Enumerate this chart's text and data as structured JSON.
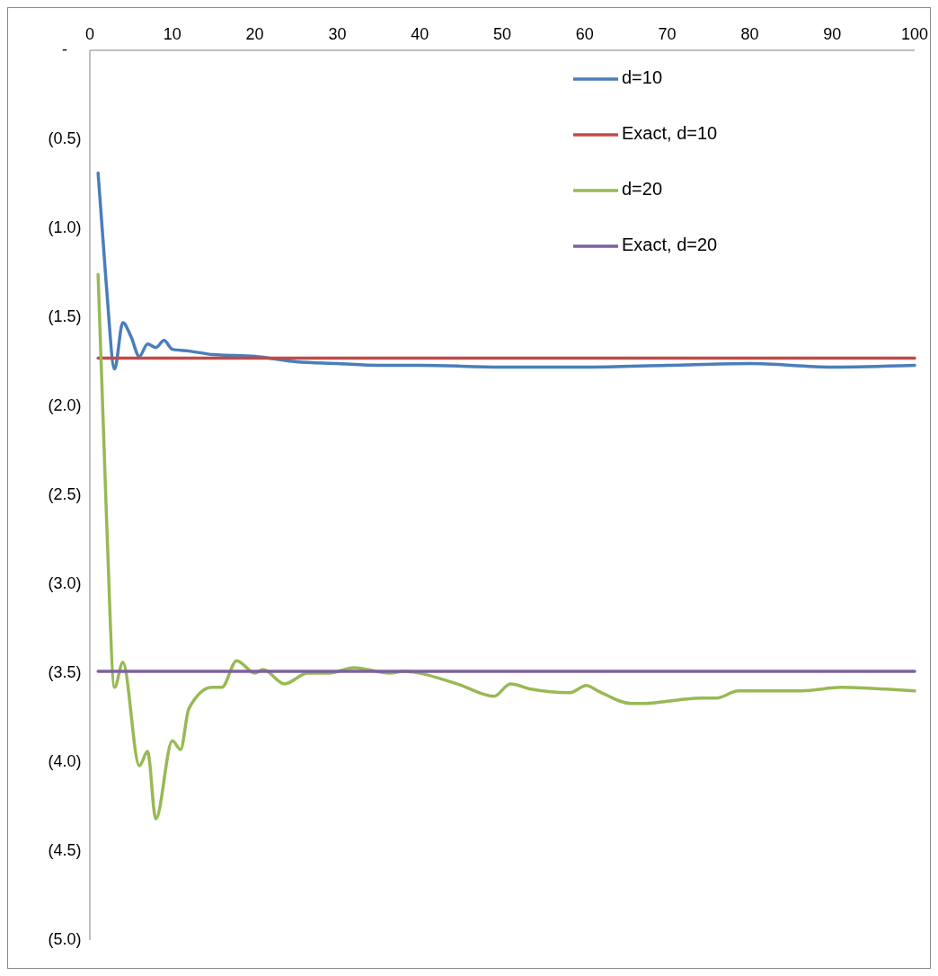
{
  "chart_data": {
    "type": "line",
    "legend": "top right",
    "marker": "none",
    "line_style": "solid",
    "grid": false,
    "xlim": [
      0,
      100
    ],
    "xticks": [
      0,
      10,
      20,
      30,
      40,
      50,
      60,
      70,
      80,
      90,
      100
    ],
    "ylim": [
      -5,
      0
    ],
    "yticks": [
      {
        "value": 0,
        "label": "-"
      },
      {
        "value": -0.5,
        "label": "(0.5)"
      },
      {
        "value": -1,
        "label": "(1.0)"
      },
      {
        "value": -1.5,
        "label": "(1.5)"
      },
      {
        "value": -2,
        "label": "(2.0)"
      },
      {
        "value": -2.5,
        "label": "(2.5)"
      },
      {
        "value": -3,
        "label": "(3.0)"
      },
      {
        "value": -3.5,
        "label": "(3.5)"
      },
      {
        "value": -4,
        "label": "(4.0)"
      },
      {
        "value": -4.5,
        "label": "(4.5)"
      },
      {
        "value": -5,
        "label": "(5.0)"
      }
    ],
    "series": [
      {
        "name": "d=10",
        "color": "#4a7ebb",
        "x": [
          1,
          2,
          3,
          4,
          5,
          6,
          7,
          8,
          9,
          10,
          12,
          15,
          20,
          25,
          30,
          35,
          40,
          50,
          60,
          70,
          80,
          90,
          100
        ],
        "values": [
          -0.69,
          -1.32,
          -1.79,
          -1.53,
          -1.61,
          -1.72,
          -1.65,
          -1.67,
          -1.63,
          -1.68,
          -1.69,
          -1.71,
          -1.72,
          -1.75,
          -1.76,
          -1.77,
          -1.77,
          -1.78,
          -1.78,
          -1.77,
          -1.76,
          -1.78,
          -1.77
        ]
      },
      {
        "name": "Exact, d=10",
        "color": "#be4b48",
        "x": [
          1,
          100
        ],
        "values": [
          -1.73,
          -1.73
        ]
      },
      {
        "name": "d=20",
        "color": "#98b954",
        "x": [
          1,
          2,
          3,
          4,
          6,
          7,
          8,
          10,
          11,
          12,
          14.8,
          16,
          17.8,
          20,
          21,
          23.6,
          26.4,
          29,
          32,
          36.4,
          38,
          44.5,
          49,
          51,
          53.5,
          58.2,
          60.2,
          61.6,
          65.6,
          67.4,
          69.7,
          74.2,
          76,
          78.6,
          82.2,
          86.3,
          91.2,
          96.6,
          100
        ],
        "values": [
          -1.26,
          -2.6,
          -3.58,
          -3.44,
          -4.02,
          -3.94,
          -4.32,
          -3.88,
          -3.93,
          -3.7,
          -3.58,
          -3.58,
          -3.43,
          -3.5,
          -3.48,
          -3.56,
          -3.5,
          -3.5,
          -3.47,
          -3.5,
          -3.49,
          -3.56,
          -3.63,
          -3.56,
          -3.59,
          -3.61,
          -3.57,
          -3.6,
          -3.67,
          -3.67,
          -3.66,
          -3.64,
          -3.64,
          -3.6,
          -3.6,
          -3.6,
          -3.58,
          -3.59,
          -3.6
        ]
      },
      {
        "name": "Exact, d=20",
        "color": "#7d60a0",
        "x": [
          1,
          100
        ],
        "values": [
          -3.49,
          -3.49
        ]
      }
    ]
  }
}
